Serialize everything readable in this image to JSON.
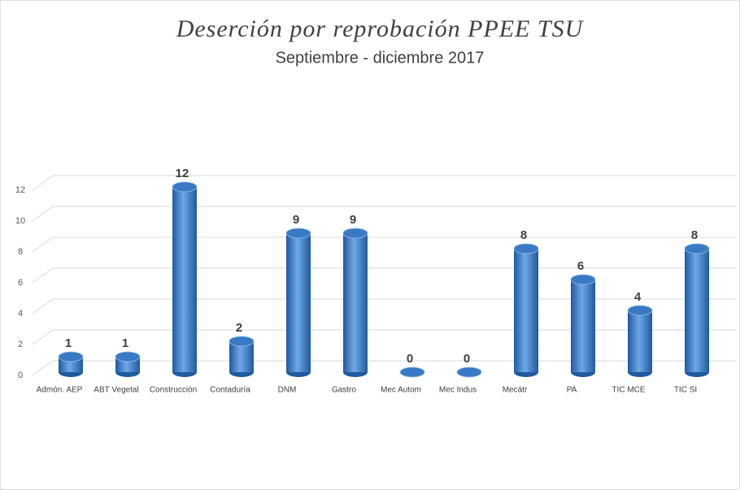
{
  "chart_data": {
    "type": "bar",
    "title": "Deserción por reprobación PPEE TSU",
    "subtitle": "Septiembre - diciembre 2017",
    "categories": [
      "Admón. AEP",
      "ABT Vegetal",
      "Construcción",
      "Contaduría",
      "DNM",
      "Gastro",
      "Mec Autom",
      "Mec Indus",
      "Mecátr",
      "PA",
      "TIC MCE",
      "TIC SI"
    ],
    "values": [
      1,
      1,
      12,
      2,
      9,
      9,
      0,
      0,
      8,
      6,
      4,
      8
    ],
    "color": "#3a7ac4",
    "ylim": [
      0,
      12
    ],
    "yticks": [
      0,
      2,
      4,
      6,
      8,
      10,
      12
    ],
    "grid": true
  }
}
